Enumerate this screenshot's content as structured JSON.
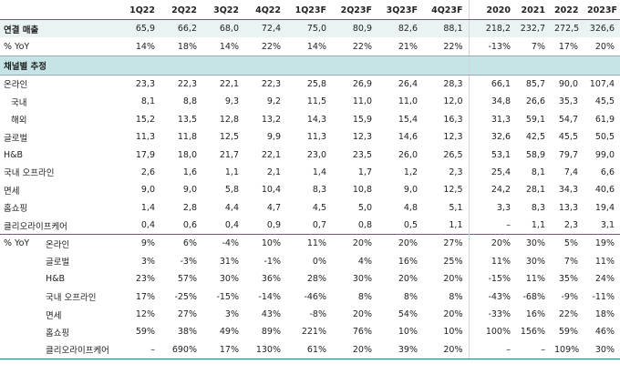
{
  "columns": [
    "1Q22",
    "2Q22",
    "3Q22",
    "4Q22",
    "1Q23F",
    "2Q23F",
    "3Q23F",
    "4Q23F",
    "2020",
    "2021",
    "2022",
    "2023F"
  ],
  "total": {
    "label": "연결 매출",
    "values": [
      "65,9",
      "66,2",
      "68,0",
      "72,4",
      "75,0",
      "80,9",
      "82,6",
      "88,1",
      "218,2",
      "232,7",
      "272,5",
      "326,6"
    ]
  },
  "total_yoy": {
    "label": "% YoY",
    "values": [
      "14%",
      "18%",
      "14%",
      "22%",
      "14%",
      "22%",
      "21%",
      "22%",
      "-13%",
      "7%",
      "17%",
      "20%"
    ]
  },
  "section_label": "채널별 추정",
  "channels": [
    {
      "label": "온라인",
      "indent": false,
      "values": [
        "23,3",
        "22,3",
        "22,1",
        "22,3",
        "25,8",
        "26,9",
        "26,4",
        "28,3",
        "66,1",
        "85,7",
        "90,0",
        "107,4"
      ]
    },
    {
      "label": "국내",
      "indent": true,
      "values": [
        "8,1",
        "8,8",
        "9,3",
        "9,2",
        "11,5",
        "11,0",
        "11,0",
        "12,0",
        "34,8",
        "26,6",
        "35,3",
        "45,5"
      ]
    },
    {
      "label": "해외",
      "indent": true,
      "values": [
        "15,2",
        "13,5",
        "12,8",
        "13,2",
        "14,3",
        "15,9",
        "15,4",
        "16,3",
        "31,3",
        "59,1",
        "54,7",
        "61,9"
      ]
    },
    {
      "label": "글로벌",
      "indent": false,
      "values": [
        "11,3",
        "11,8",
        "12,5",
        "9,9",
        "11,3",
        "12,3",
        "14,6",
        "12,3",
        "32,6",
        "42,5",
        "45,5",
        "50,5"
      ]
    },
    {
      "label": "H&B",
      "indent": false,
      "values": [
        "17,9",
        "18,0",
        "21,7",
        "22,1",
        "23,0",
        "23,5",
        "26,0",
        "26,5",
        "53,1",
        "58,9",
        "79,7",
        "99,0"
      ]
    },
    {
      "label": "국내 오프라인",
      "indent": false,
      "values": [
        "2,6",
        "1,6",
        "1,1",
        "2,1",
        "1,4",
        "1,7",
        "1,2",
        "2,3",
        "25,4",
        "8,1",
        "7,4",
        "6,6"
      ]
    },
    {
      "label": "면세",
      "indent": false,
      "values": [
        "9,0",
        "9,0",
        "5,8",
        "10,4",
        "8,3",
        "10,8",
        "9,0",
        "12,5",
        "24,2",
        "28,1",
        "34,3",
        "40,6"
      ]
    },
    {
      "label": "홈쇼핑",
      "indent": false,
      "values": [
        "1,4",
        "2,8",
        "4,4",
        "4,7",
        "4,5",
        "5,0",
        "4,8",
        "5,1",
        "3,3",
        "8,3",
        "13,3",
        "19,4"
      ]
    },
    {
      "label": "클리오라이프케어",
      "indent": false,
      "values": [
        "0,4",
        "0,6",
        "0,4",
        "0,9",
        "0,7",
        "0,8",
        "0,5",
        "1,1",
        "–",
        "1,1",
        "2,3",
        "3,1"
      ]
    }
  ],
  "yoy_label": "% YoY",
  "yoy": [
    {
      "label": "온라인",
      "values": [
        "9%",
        "6%",
        "-4%",
        "10%",
        "11%",
        "20%",
        "20%",
        "27%",
        "20%",
        "30%",
        "5%",
        "19%"
      ]
    },
    {
      "label": "글로벌",
      "values": [
        "3%",
        "-3%",
        "31%",
        "-1%",
        "0%",
        "4%",
        "16%",
        "25%",
        "11%",
        "30%",
        "7%",
        "11%"
      ]
    },
    {
      "label": "H&B",
      "values": [
        "23%",
        "57%",
        "30%",
        "36%",
        "28%",
        "30%",
        "20%",
        "20%",
        "-15%",
        "11%",
        "35%",
        "24%"
      ]
    },
    {
      "label": "국내 오프라인",
      "values": [
        "17%",
        "-25%",
        "-15%",
        "-14%",
        "-46%",
        "8%",
        "8%",
        "8%",
        "-43%",
        "-68%",
        "-9%",
        "-11%"
      ]
    },
    {
      "label": "면세",
      "values": [
        "12%",
        "27%",
        "3%",
        "43%",
        "-8%",
        "20%",
        "54%",
        "20%",
        "-33%",
        "16%",
        "22%",
        "18%"
      ]
    },
    {
      "label": "홈쇼핑",
      "values": [
        "59%",
        "38%",
        "49%",
        "89%",
        "221%",
        "76%",
        "10%",
        "10%",
        "100%",
        "156%",
        "59%",
        "46%"
      ]
    },
    {
      "label": "클리오라이프케어",
      "values": [
        "–",
        "690%",
        "17%",
        "130%",
        "61%",
        "20%",
        "39%",
        "20%",
        "–",
        "–",
        "109%",
        "30%"
      ]
    }
  ]
}
